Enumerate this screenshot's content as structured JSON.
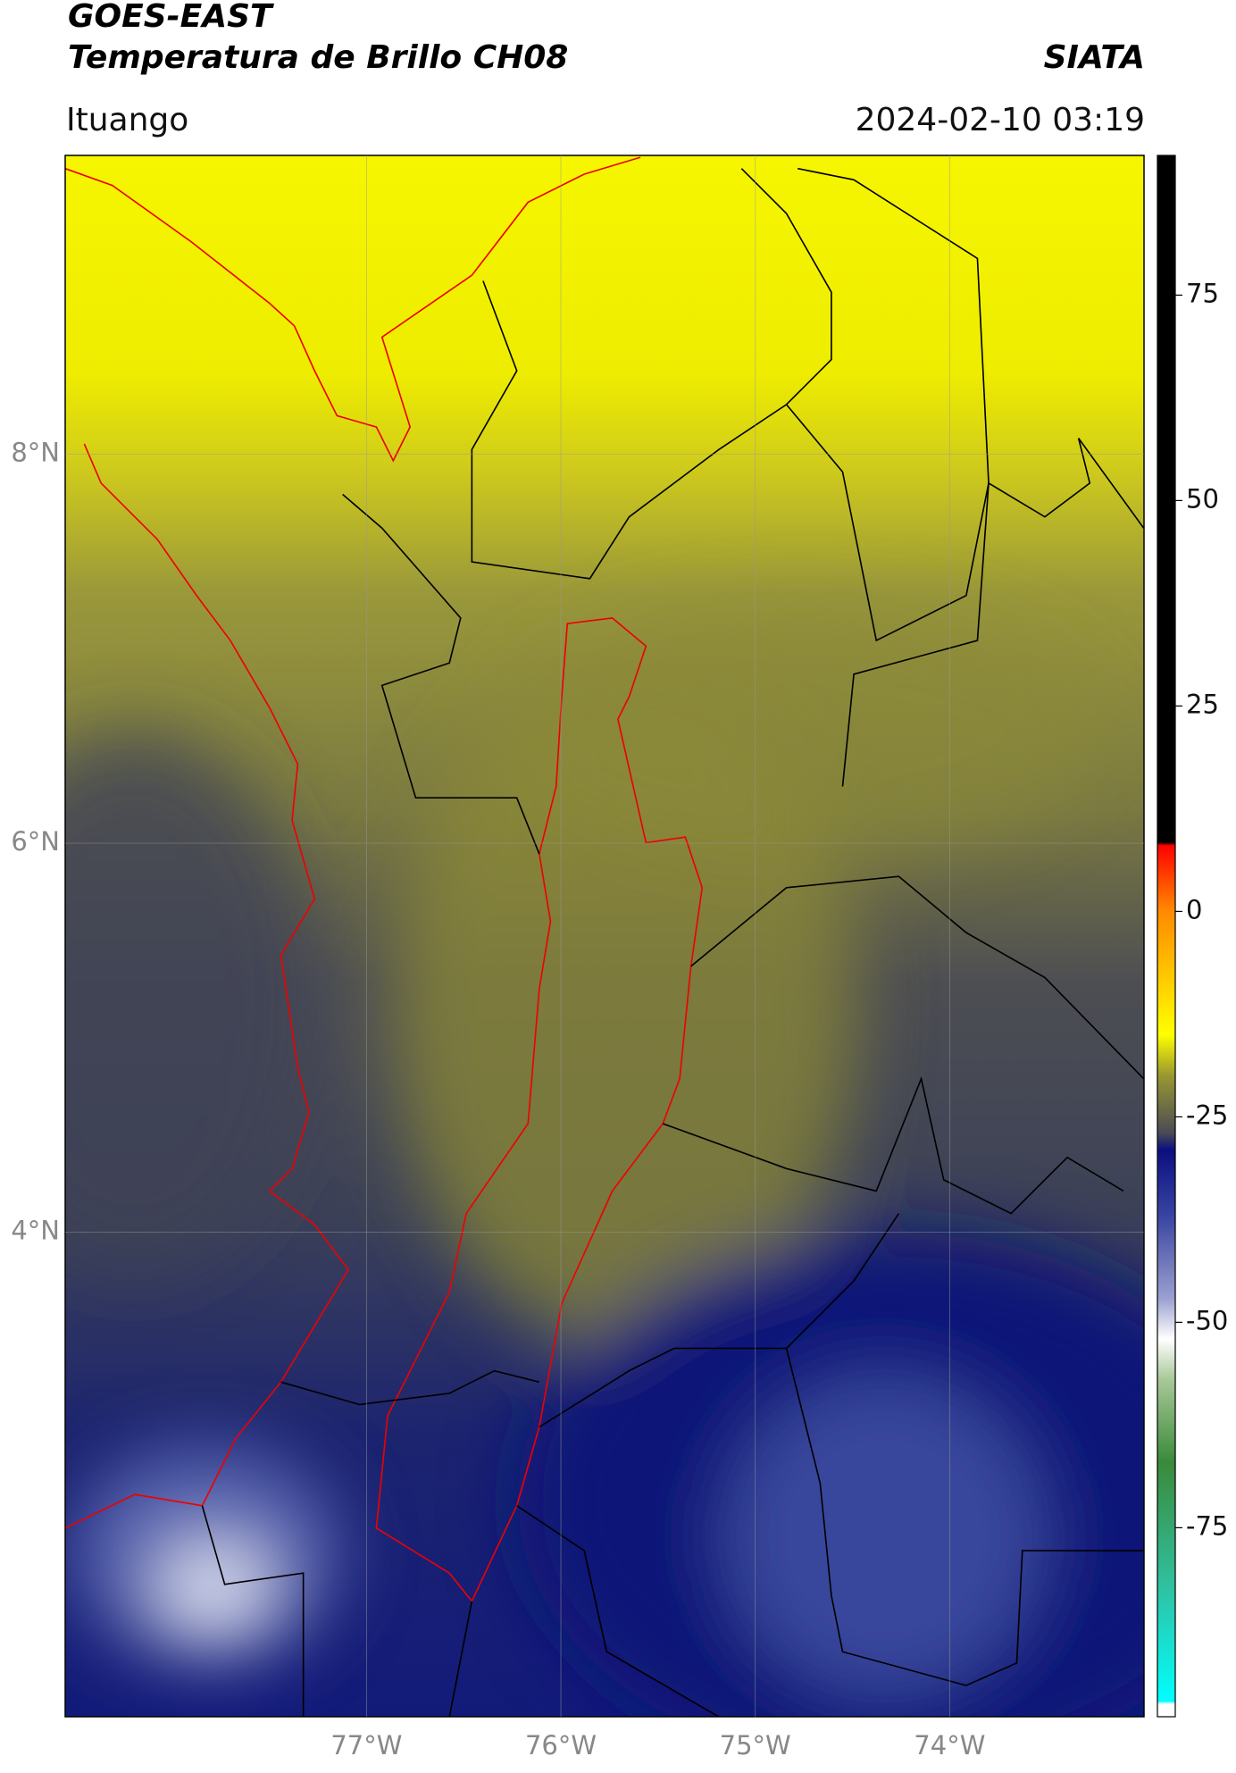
{
  "header": {
    "title": "GOES-EAST",
    "subtitle": "Temperatura de Brillo CH08",
    "source": "SIATA",
    "region": "Ituango",
    "timestamp": "2024-02-10 03:19"
  },
  "map": {
    "xlim": [
      -78.55,
      -73.0
    ],
    "ylim": [
      1.51,
      9.535
    ],
    "xticks": [
      {
        "value": -77,
        "label": "77°W"
      },
      {
        "value": -76,
        "label": "76°W"
      },
      {
        "value": -75,
        "label": "75°W"
      },
      {
        "value": -74,
        "label": "74°W"
      }
    ],
    "yticks": [
      {
        "value": 8,
        "label": "8°N"
      },
      {
        "value": 6,
        "label": "6°N"
      },
      {
        "value": 4,
        "label": "4°N"
      }
    ],
    "grid": true
  },
  "colorbar": {
    "lim": [
      -98,
      92
    ],
    "ticks": [
      75,
      50,
      25,
      0,
      -25,
      -50,
      -75
    ]
  }
}
